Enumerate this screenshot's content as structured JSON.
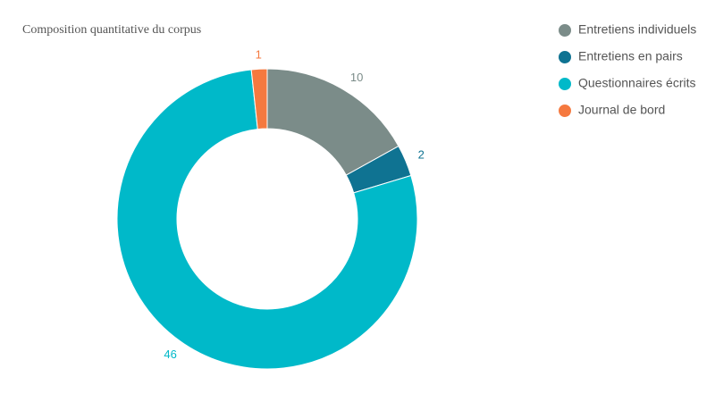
{
  "chart_data": {
    "type": "donut",
    "title": "Composition quantitative du corpus",
    "categories": [
      "Entretiens individuels",
      "Entretiens en pairs",
      "Questionnaires écrits",
      "Journal de bord"
    ],
    "values": [
      10,
      2,
      46,
      1
    ],
    "colors": [
      "#7b8c89",
      "#0f7392",
      "#00b9c9",
      "#f5793f"
    ],
    "legend": "top-right"
  }
}
